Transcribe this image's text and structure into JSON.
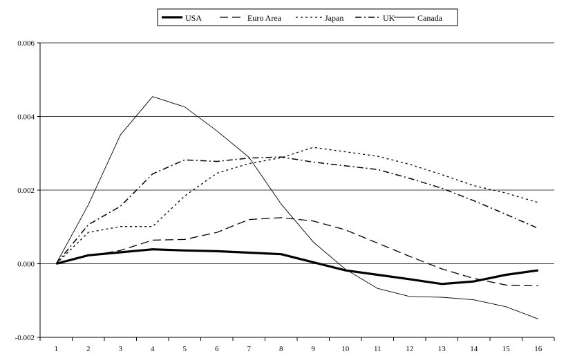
{
  "chart_data": {
    "type": "line",
    "title": "",
    "xlabel": "",
    "ylabel": "",
    "x": [
      1,
      2,
      3,
      4,
      5,
      6,
      7,
      8,
      9,
      10,
      11,
      12,
      13,
      14,
      15,
      16
    ],
    "ylim": [
      -0.002,
      0.006
    ],
    "yticks": [
      "-0.002",
      "0.000",
      "0.002",
      "0.004",
      "0.006"
    ],
    "ytick_values": [
      -0.002,
      0.0,
      0.002,
      0.004,
      0.006
    ],
    "grid": "horizontal",
    "legend_position": "top-center",
    "series": [
      {
        "name": "USA",
        "style": "thick-solid",
        "values": [
          0.0,
          0.00023,
          0.00031,
          0.00039,
          0.00036,
          0.00034,
          0.0003,
          0.00026,
          4e-05,
          -0.00018,
          -0.0003,
          -0.00042,
          -0.00055,
          -0.00048,
          -0.0003,
          -0.00018
        ]
      },
      {
        "name": "Euro Area",
        "style": "long-dash",
        "values": [
          0.0,
          0.00021,
          0.00036,
          0.00064,
          0.00066,
          0.00085,
          0.0012,
          0.00125,
          0.00116,
          0.00092,
          0.00056,
          0.0002,
          -0.00014,
          -0.0004,
          -0.00058,
          -0.0006
        ]
      },
      {
        "name": "Japan",
        "style": "dotted",
        "values": [
          0.0,
          0.00085,
          0.00101,
          0.00101,
          0.00184,
          0.00246,
          0.00272,
          0.00288,
          0.00316,
          0.00304,
          0.00292,
          0.0027,
          0.00242,
          0.00212,
          0.00192,
          0.00166
        ]
      },
      {
        "name": "UK",
        "style": "dash-dot",
        "values": [
          0.0,
          0.00106,
          0.00156,
          0.00244,
          0.00282,
          0.00278,
          0.00287,
          0.0029,
          0.00276,
          0.00266,
          0.00256,
          0.00232,
          0.00205,
          0.00171,
          0.00134,
          0.00096
        ]
      },
      {
        "name": "Canada",
        "style": "thin-solid",
        "values": [
          0.0,
          0.0016,
          0.0035,
          0.00454,
          0.00426,
          0.00361,
          0.00289,
          0.00162,
          0.00059,
          -0.00015,
          -0.00067,
          -0.00089,
          -0.00091,
          -0.00098,
          -0.00117,
          -0.0015
        ]
      }
    ]
  }
}
